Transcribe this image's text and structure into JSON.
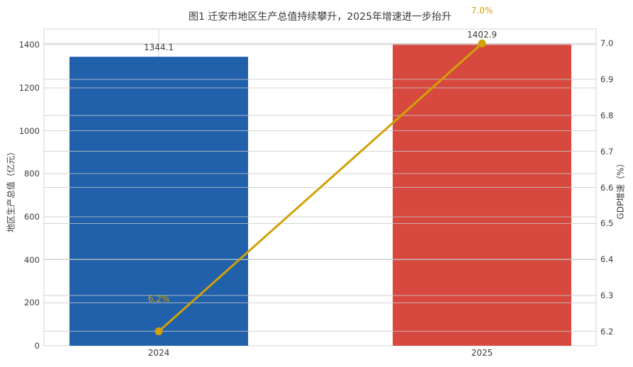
{
  "chart_data": {
    "type": "bar",
    "title": "图1 迁安市地区生产总值持续攀升，2025年增速进一步抬升",
    "categories": [
      "2024",
      "2025"
    ],
    "series": [
      {
        "name": "地区生产总值",
        "type": "bar",
        "axis": "left",
        "values": [
          1344.1,
          1402.9
        ],
        "data_labels": [
          "1344.1",
          "1402.9"
        ],
        "bar_colors": [
          "#2161ab",
          "#d7493f"
        ]
      },
      {
        "name": "GDP增速",
        "type": "line",
        "axis": "right",
        "values": [
          6.2,
          7.0
        ],
        "data_labels": [
          "6.2%",
          "7.0%"
        ],
        "color": "#d2a106"
      }
    ],
    "left_axis": {
      "label": "地区生产总值（亿元）",
      "ticks": [
        0,
        200,
        400,
        600,
        800,
        1000,
        1200,
        1400
      ],
      "range": [
        0,
        1473
      ]
    },
    "right_axis": {
      "label": "GDP增速（%）",
      "ticks": [
        6.2,
        6.3,
        6.4,
        6.5,
        6.6,
        6.7,
        6.8,
        6.9,
        7.0
      ],
      "range": [
        6.16,
        7.04
      ]
    },
    "x_axis": {
      "tick_labels": [
        "2024",
        "2025"
      ]
    },
    "grid": true,
    "legend": "none"
  },
  "style": {
    "background": "#ffffff",
    "plot_border": "#d6d6d6",
    "gridline": "#c8c8c8",
    "text": "#3c3c3c",
    "annotation": "#d2a106"
  }
}
